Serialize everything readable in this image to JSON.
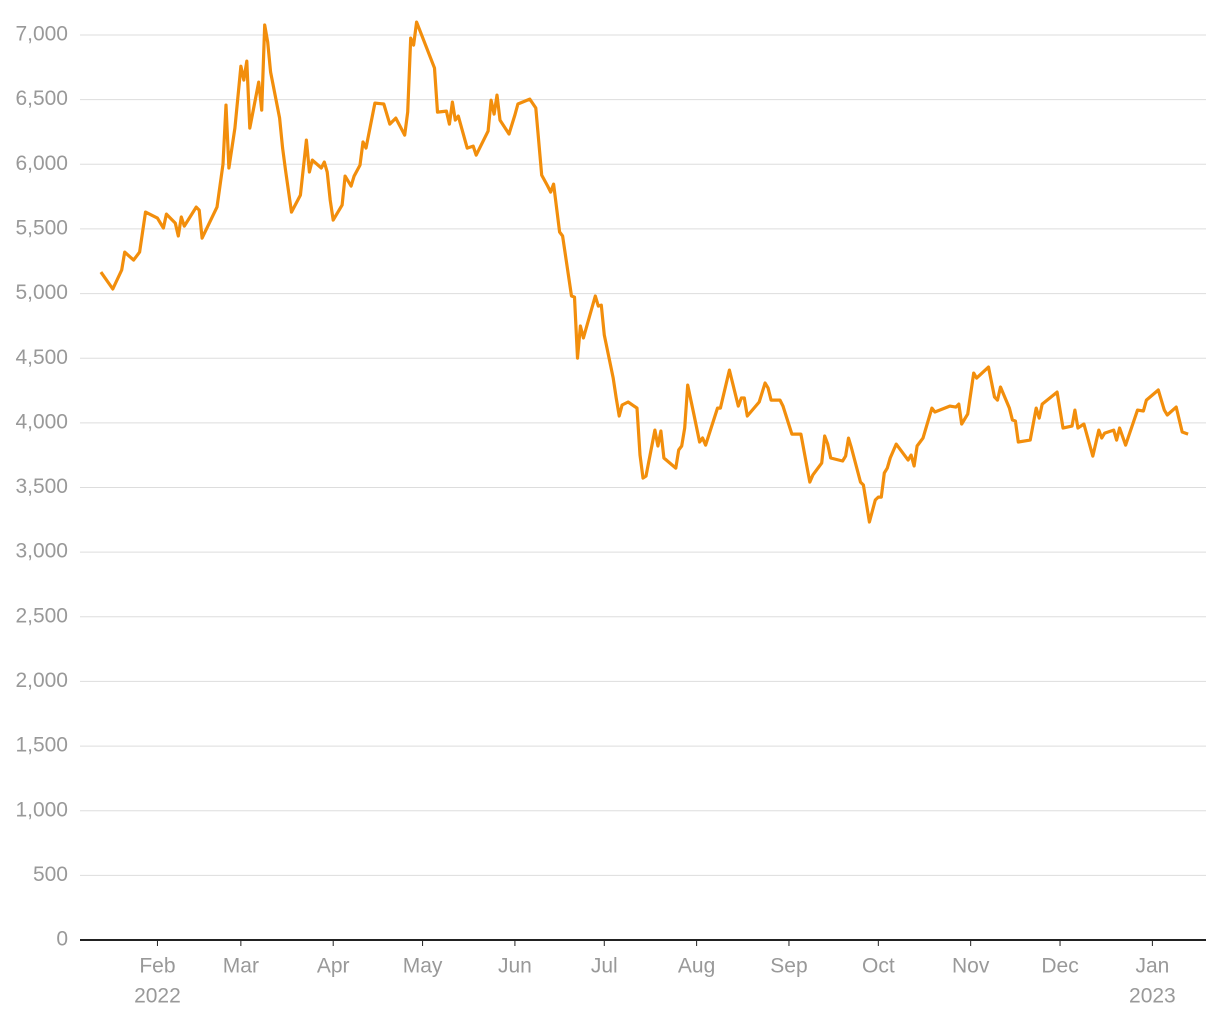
{
  "chart_data": {
    "type": "line",
    "color": "#f28e0c",
    "grid": true,
    "x": [
      12,
      16,
      19,
      20,
      23,
      25,
      27,
      31,
      33,
      34,
      37,
      38,
      39,
      40,
      44,
      45,
      46,
      51,
      53,
      54,
      55,
      57,
      59,
      60,
      61,
      62,
      65,
      66,
      67,
      68,
      69,
      72,
      73,
      74,
      76,
      79,
      81,
      82,
      83,
      86,
      87,
      88,
      89,
      90,
      93,
      94,
      96,
      97,
      99,
      100,
      101,
      104,
      107,
      109,
      111,
      114,
      115,
      116,
      117,
      118,
      124,
      125,
      128,
      129,
      130,
      131,
      132,
      135,
      137,
      138,
      142,
      143,
      144,
      145,
      146,
      149,
      151,
      152,
      156,
      158,
      160,
      162,
      163,
      164,
      166,
      167,
      170,
      171,
      172,
      173,
      174,
      178,
      179,
      180,
      181,
      184,
      185,
      186,
      187,
      189,
      192,
      193,
      194,
      195,
      198,
      199,
      200,
      201,
      205,
      206,
      207,
      208,
      209,
      211,
      213,
      214,
      215,
      219,
      220,
      223,
      226,
      227,
      228,
      229,
      233,
      235,
      236,
      237,
      240,
      241,
      244,
      247,
      249,
      250,
      251,
      254,
      255,
      256,
      257,
      261,
      262,
      263,
      264,
      267,
      268,
      270,
      272,
      273,
      274,
      275,
      276,
      277,
      279,
      283,
      284,
      285,
      286,
      288,
      291,
      292,
      297,
      299,
      300,
      301,
      303,
      305,
      306,
      310,
      312,
      313,
      314,
      317,
      318,
      319,
      320,
      324,
      325,
      326,
      327,
      328,
      333,
      335,
      338,
      339,
      340,
      342,
      345,
      347,
      348,
      349,
      352,
      353,
      354,
      356,
      360,
      362,
      363,
      367,
      369,
      370,
      373,
      375,
      377
    ],
    "values": [
      5166,
      5035,
      5182,
      5321,
      5259,
      5321,
      5630,
      5584,
      5507,
      5615,
      5545,
      5445,
      5592,
      5522,
      5669,
      5646,
      5429,
      5669,
      6001,
      6458,
      5971,
      6280,
      6759,
      6651,
      6798,
      6280,
      6636,
      6419,
      7077,
      6945,
      6713,
      6357,
      6125,
      5955,
      5630,
      5762,
      6187,
      5940,
      6032,
      5971,
      6017,
      5940,
      5723,
      5568,
      5684,
      5909,
      5831,
      5909,
      5994,
      6172,
      6125,
      6473,
      6466,
      6311,
      6357,
      6226,
      6404,
      6976,
      6922,
      7100,
      6744,
      6404,
      6411,
      6311,
      6481,
      6342,
      6373,
      6125,
      6141,
      6071,
      6257,
      6496,
      6388,
      6535,
      6342,
      6234,
      6381,
      6466,
      6504,
      6435,
      5916,
      5831,
      5785,
      5847,
      5476,
      5445,
      4981,
      4973,
      4501,
      4749,
      4656,
      4981,
      4903,
      4911,
      4679,
      4346,
      4192,
      4053,
      4138,
      4161,
      4114,
      3751,
      3573,
      3588,
      3944,
      3821,
      3937,
      3728,
      3650,
      3790,
      3821,
      3960,
      4292,
      4076,
      3852,
      3883,
      3828,
      4114,
      4114,
      4408,
      4130,
      4192,
      4192,
      4053,
      4161,
      4308,
      4269,
      4176,
      4176,
      4130,
      3913,
      3913,
      3666,
      3542,
      3596,
      3689,
      3898,
      3836,
      3728,
      3705,
      3743,
      3882,
      3805,
      3542,
      3519,
      3233,
      3403,
      3426,
      3426,
      3612,
      3650,
      3728,
      3836,
      3712,
      3751,
      3666,
      3821,
      3882,
      4114,
      4084,
      4130,
      4122,
      4145,
      3991,
      4068,
      4385,
      4346,
      4431,
      4200,
      4176,
      4277,
      4114,
      4022,
      4014,
      3852,
      3867,
      3991,
      4114,
      4037,
      4145,
      4238,
      3960,
      3975,
      4099,
      3960,
      3991,
      3743,
      3944,
      3883,
      3921,
      3944,
      3867,
      3960,
      3828,
      4099,
      4092,
      4176,
      4254,
      4099,
      4061,
      4122,
      3929,
      3913
    ],
    "xlim": [
      5,
      383
    ],
    "xticks": [
      {
        "value": 31,
        "label": "Feb",
        "sublabel": "2022"
      },
      {
        "value": 59,
        "label": "Mar"
      },
      {
        "value": 90,
        "label": "Apr"
      },
      {
        "value": 120,
        "label": "May"
      },
      {
        "value": 151,
        "label": "Jun"
      },
      {
        "value": 181,
        "label": "Jul"
      },
      {
        "value": 212,
        "label": "Aug"
      },
      {
        "value": 243,
        "label": "Sep"
      },
      {
        "value": 273,
        "label": "Oct"
      },
      {
        "value": 304,
        "label": "Nov"
      },
      {
        "value": 334,
        "label": "Dec"
      },
      {
        "value": 365,
        "label": "Jan",
        "sublabel": "2023"
      }
    ],
    "ylim": [
      0,
      7000
    ],
    "yticks": [
      0,
      500,
      {
        "value": 1000,
        "label": "1,000"
      },
      {
        "value": 1500,
        "label": "1,500"
      },
      {
        "value": 2000,
        "label": "2,000"
      },
      {
        "value": 2500,
        "label": "2,500"
      },
      {
        "value": 3000,
        "label": "3,000"
      },
      {
        "value": 3500,
        "label": "3,500"
      },
      {
        "value": 4000,
        "label": "4,000"
      },
      {
        "value": 4500,
        "label": "4,500"
      },
      {
        "value": 5000,
        "label": "5,000"
      },
      {
        "value": 5500,
        "label": "5,500"
      },
      {
        "value": 6000,
        "label": "6,000"
      },
      {
        "value": 6500,
        "label": "6,500"
      },
      {
        "value": 7000,
        "label": "7,000"
      }
    ]
  }
}
